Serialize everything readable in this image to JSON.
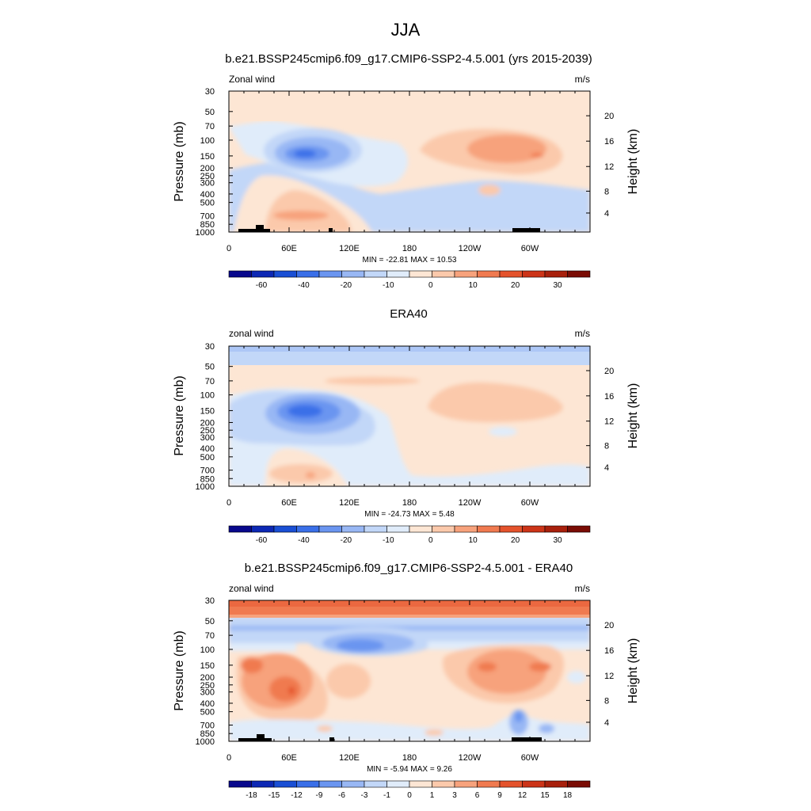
{
  "figure_title": "JJA",
  "chart_data": [
    {
      "type": "heatmap",
      "title": "b.e21.BSSP245cmip6.f09_g17.CMIP6-SSP2-4.5.001 (yrs 2015-2039)",
      "left_string": "Zonal wind",
      "right_string": "m/s",
      "ylabel": "Pressure (mb)",
      "y2label": "Height (km)",
      "x_ticks": [
        "0",
        "60E",
        "120E",
        "180",
        "120W",
        "60W"
      ],
      "y_ticks": [
        "30",
        "50",
        "70",
        "100",
        "150",
        "200",
        "250",
        "300",
        "400",
        "500",
        "700",
        "850",
        "1000"
      ],
      "y2_ticks": [
        "20",
        "16",
        "12",
        "8",
        "4"
      ],
      "stats": "MIN = -22.81  MAX =  10.53",
      "min": -22.81,
      "max": 10.53,
      "colorbar_labels": [
        "-60",
        "-40",
        "-20",
        "-10",
        "0",
        "10",
        "20",
        "30"
      ],
      "colorbar_colors": [
        "#08088c",
        "#0d28b4",
        "#1a4fd4",
        "#3a6fe8",
        "#6a95f0",
        "#98b7f4",
        "#c2d7f8",
        "#e0ecfa",
        "#fde6d4",
        "#fbc9ab",
        "#f7a27c",
        "#f07a50",
        "#e4532c",
        "#cc3418",
        "#a8200c",
        "#7a0c04"
      ]
    },
    {
      "type": "heatmap",
      "title": "ERA40",
      "left_string": "zonal wind",
      "right_string": "m/s",
      "ylabel": "Pressure (mb)",
      "y2label": "Height (km)",
      "x_ticks": [
        "0",
        "60E",
        "120E",
        "180",
        "120W",
        "60W"
      ],
      "y_ticks": [
        "30",
        "50",
        "70",
        "100",
        "150",
        "200",
        "250",
        "300",
        "400",
        "500",
        "700",
        "850",
        "1000"
      ],
      "y2_ticks": [
        "20",
        "16",
        "12",
        "8",
        "4"
      ],
      "stats": "MIN = -24.73  MAX =   5.48",
      "min": -24.73,
      "max": 5.48,
      "colorbar_labels": [
        "-60",
        "-40",
        "-20",
        "-10",
        "0",
        "10",
        "20",
        "30"
      ],
      "colorbar_colors": [
        "#08088c",
        "#0d28b4",
        "#1a4fd4",
        "#3a6fe8",
        "#6a95f0",
        "#98b7f4",
        "#c2d7f8",
        "#e0ecfa",
        "#fde6d4",
        "#fbc9ab",
        "#f7a27c",
        "#f07a50",
        "#e4532c",
        "#cc3418",
        "#a8200c",
        "#7a0c04"
      ]
    },
    {
      "type": "heatmap",
      "title": "b.e21.BSSP245cmip6.f09_g17.CMIP6-SSP2-4.5.001 - ERA40",
      "left_string": "zonal wind",
      "right_string": "m/s",
      "ylabel": "Pressure (mb)",
      "y2label": "Height (km)",
      "x_ticks": [
        "0",
        "60E",
        "120E",
        "180",
        "120W",
        "60W"
      ],
      "y_ticks": [
        "30",
        "50",
        "70",
        "100",
        "150",
        "200",
        "250",
        "300",
        "400",
        "500",
        "700",
        "850",
        "1000"
      ],
      "y2_ticks": [
        "20",
        "16",
        "12",
        "8",
        "4"
      ],
      "stats": "MIN =  -5.94  MAX =   9.26",
      "min": -5.94,
      "max": 9.26,
      "colorbar_labels": [
        "-18",
        "-15",
        "-12",
        "-9",
        "-6",
        "-3",
        "-1",
        "0",
        "1",
        "3",
        "6",
        "9",
        "12",
        "15",
        "18"
      ],
      "colorbar_colors": [
        "#08088c",
        "#0d28b4",
        "#1a4fd4",
        "#3a6fe8",
        "#6a95f0",
        "#98b7f4",
        "#c2d7f8",
        "#e0ecfa",
        "#fde6d4",
        "#fbc9ab",
        "#f7a27c",
        "#f07a50",
        "#e4532c",
        "#cc3418",
        "#a8200c",
        "#7a0c04"
      ]
    }
  ]
}
